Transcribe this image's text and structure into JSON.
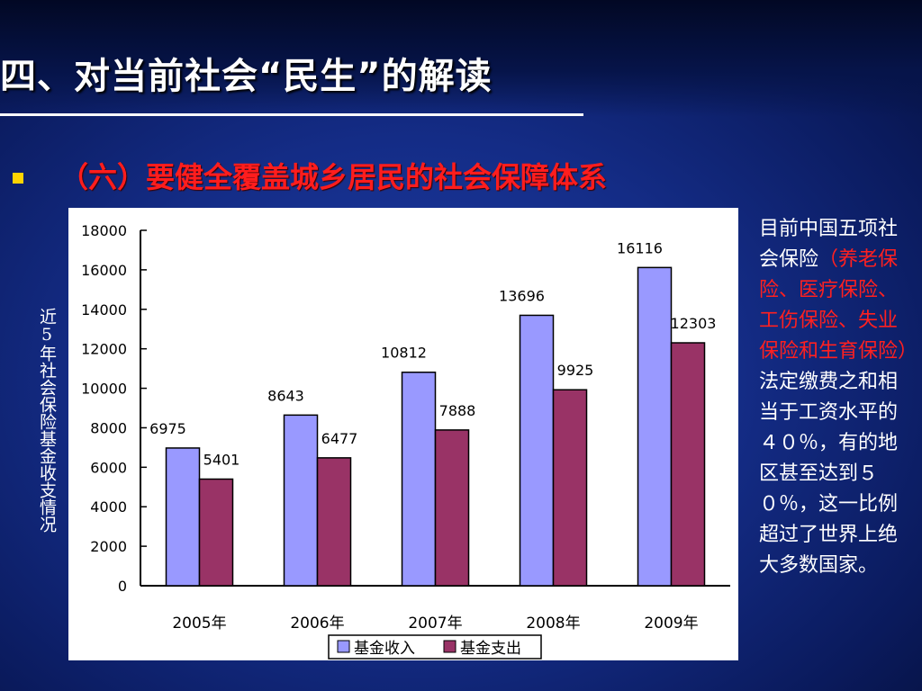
{
  "slide": {
    "title": "四、对当前社会“民生”的解读",
    "subtitle": "（六）要健全覆盖城乡居民的社会保障体系",
    "vertical_label": "近5年社会保险基金收支情况",
    "note_part1": "目前中国五项社会保险",
    "note_part2": "（养老保险、医疗保险、工伤保险、失业保险和生育保险）",
    "note_part3": "法定缴费之和相当于工资水平的４０％，有的地区甚至达到５０％，这一比例超过了世界上绝大多数国家。"
  },
  "colors": {
    "income": "#9999ff",
    "expense": "#993366",
    "subtitle": "#ff1d1d",
    "note_highlight": "#ff2020",
    "bullet": "#ffd400"
  },
  "chart_data": {
    "type": "bar",
    "title": "",
    "xlabel": "",
    "ylabel": "",
    "categories": [
      "2005年",
      "2006年",
      "2007年",
      "2008年",
      "2009年"
    ],
    "series": [
      {
        "name": "基金收入",
        "values": [
          6975,
          8643,
          10812,
          13696,
          16116
        ]
      },
      {
        "name": "基金支出",
        "values": [
          5401,
          6477,
          7888,
          9925,
          12303
        ]
      }
    ],
    "ylim": [
      0,
      18000
    ],
    "yticks": [
      "0",
      "2000",
      "4000",
      "6000",
      "8000",
      "10000",
      "12000",
      "14000",
      "16000",
      "18000"
    ],
    "grid": false,
    "legend_position": "bottom"
  }
}
